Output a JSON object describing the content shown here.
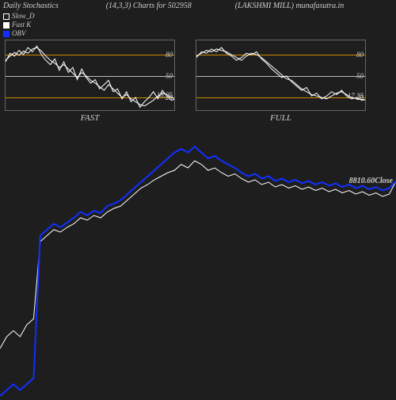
{
  "header": {
    "title": "Daily Stochastics",
    "params": "(14,3,3) Charts for 502958",
    "stock": "(LAKSHMI MILL) munafasutra.in"
  },
  "legend": {
    "slow_d": {
      "label": "Slow_D",
      "color": "#ffffff",
      "fill": "#1e1e1e"
    },
    "fast_k": {
      "label": "Fast K",
      "color": "#ffffff",
      "fill": "#ffffff"
    },
    "obv": {
      "label": "OBV",
      "color": "#1030ff",
      "fill": "#1030ff"
    }
  },
  "colors": {
    "background": "#1e1e1e",
    "grid_upper": "#cc8800",
    "grid_mid": "#bbbbbb",
    "grid_lower": "#cc8800",
    "line_white": "#ffffff",
    "line_blue": "#1030ff",
    "panel_border": "#666666",
    "text": "#cccccc"
  },
  "sub_panels": {
    "fast": {
      "label": "FAST",
      "ylim": [
        0,
        100
      ],
      "ticks": [
        20,
        50,
        80
      ],
      "current_value": "18.05",
      "series_a_color": "#ffffff",
      "series_b_color": "#ffffff",
      "series_a": [
        72,
        78,
        83,
        79,
        85,
        82,
        88,
        90,
        85,
        78,
        72,
        68,
        62,
        66,
        60,
        54,
        48,
        55,
        50,
        44,
        40,
        35,
        30,
        38,
        32,
        26,
        20,
        24,
        18,
        14,
        10,
        8,
        12,
        16,
        22,
        26,
        24,
        20,
        18
      ],
      "series_b": [
        70,
        82,
        78,
        86,
        80,
        90,
        84,
        92,
        80,
        72,
        66,
        74,
        58,
        70,
        55,
        62,
        45,
        60,
        48,
        40,
        45,
        32,
        38,
        44,
        28,
        32,
        18,
        28,
        14,
        20,
        6,
        14,
        20,
        28,
        18,
        30,
        22,
        16,
        18
      ]
    },
    "full": {
      "label": "FULL",
      "ylim": [
        0,
        100
      ],
      "ticks": [
        20,
        50,
        80
      ],
      "current_value": "17.25",
      "series_a_color": "#ffffff",
      "series_b_color": "#ffffff",
      "series_a": [
        78,
        82,
        86,
        84,
        88,
        86,
        84,
        80,
        76,
        72,
        78,
        82,
        80,
        76,
        70,
        64,
        58,
        52,
        46,
        44,
        38,
        32,
        28,
        24,
        22,
        20,
        18,
        22,
        26,
        28,
        24,
        20,
        18,
        17,
        17
      ],
      "series_b": [
        76,
        84,
        82,
        88,
        84,
        90,
        82,
        78,
        72,
        76,
        82,
        80,
        84,
        74,
        68,
        60,
        54,
        48,
        50,
        42,
        36,
        30,
        34,
        22,
        26,
        18,
        22,
        28,
        24,
        30,
        22,
        18,
        20,
        16,
        17
      ]
    }
  },
  "main_chart": {
    "close_value": "8810.60",
    "close_label": "Close",
    "white_color": "#ffffff",
    "blue_color": "#1030ff",
    "ylim": [
      7000,
      9200
    ],
    "white_series": [
      7400,
      7500,
      7550,
      7500,
      7600,
      7650,
      8300,
      8350,
      8400,
      8380,
      8420,
      8450,
      8500,
      8480,
      8520,
      8500,
      8550,
      8580,
      8600,
      8650,
      8700,
      8750,
      8780,
      8820,
      8850,
      8880,
      8900,
      8950,
      8920,
      8980,
      8950,
      8900,
      8920,
      8880,
      8850,
      8870,
      8830,
      8800,
      8820,
      8780,
      8800,
      8760,
      8780,
      8750,
      8770,
      8740,
      8760,
      8730,
      8750,
      8720,
      8740,
      8710,
      8730,
      8700,
      8720,
      8690,
      8710,
      8680,
      8700,
      8810
    ],
    "blue_series": [
      7000,
      7050,
      7100,
      7050,
      7100,
      7150,
      8350,
      8400,
      8450,
      8420,
      8460,
      8500,
      8550,
      8520,
      8560,
      8540,
      8600,
      8620,
      8650,
      8700,
      8750,
      8800,
      8850,
      8900,
      8950,
      9000,
      9050,
      9080,
      9050,
      9100,
      9050,
      9000,
      9020,
      8980,
      8950,
      8920,
      8880,
      8850,
      8870,
      8830,
      8850,
      8810,
      8830,
      8800,
      8820,
      8790,
      8810,
      8780,
      8800,
      8770,
      8790,
      8760,
      8780,
      8750,
      8770,
      8740,
      8760,
      8730,
      8750,
      8810
    ]
  }
}
